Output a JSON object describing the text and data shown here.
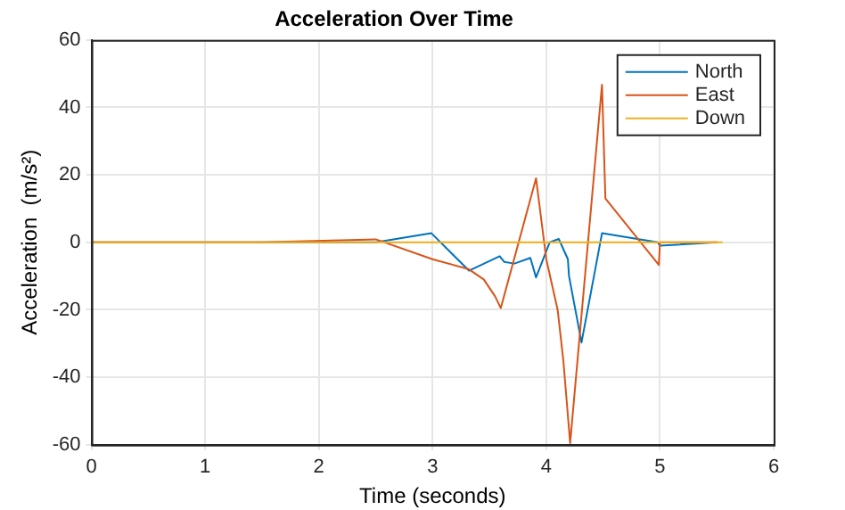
{
  "chart_data": {
    "type": "line",
    "title": "Acceleration Over Time",
    "xlabel": "Time (seconds)",
    "ylabel": "Acceleration  (m/s²)",
    "xlim": [
      0,
      6
    ],
    "xticks": [
      0,
      1,
      2,
      3,
      4,
      5,
      6
    ],
    "ylim": [
      -60,
      60
    ],
    "yticks": [
      -60,
      -40,
      -20,
      0,
      20,
      40,
      60
    ],
    "grid": true,
    "legend": "top right",
    "line_style": "solid",
    "marker": "none",
    "series": [
      {
        "name": "North",
        "color": "#0072bd",
        "x": [
          0,
          2.5,
          2.99,
          3.32,
          3.59,
          3.63,
          3.72,
          3.86,
          3.91,
          4.03,
          4.11,
          4.19,
          4.2,
          4.31,
          4.49,
          4.98,
          5.0,
          5.5
        ],
        "values": [
          0,
          0,
          2.7,
          -8.4,
          -4.1,
          -5.8,
          -6.3,
          -4.6,
          -10.4,
          0,
          1,
          -5,
          -10,
          -29.7,
          2.7,
          0,
          -1,
          0
        ]
      },
      {
        "name": "East",
        "color": "#d95319",
        "x": [
          0,
          1.5,
          2.5,
          3.0,
          3.32,
          3.45,
          3.55,
          3.6,
          3.91,
          4.0,
          4.1,
          4.15,
          4.21,
          4.49,
          4.52,
          4.99,
          5.0,
          5.5
        ],
        "values": [
          0,
          0,
          0.9,
          -5,
          -8,
          -11,
          -16,
          -19.5,
          19,
          -5,
          -20,
          -35,
          -59.5,
          46.7,
          13,
          -6.7,
          0,
          0
        ]
      },
      {
        "name": "Down",
        "color": "#edb120",
        "x": [
          0,
          5.55
        ],
        "values": [
          0,
          0
        ]
      }
    ]
  }
}
